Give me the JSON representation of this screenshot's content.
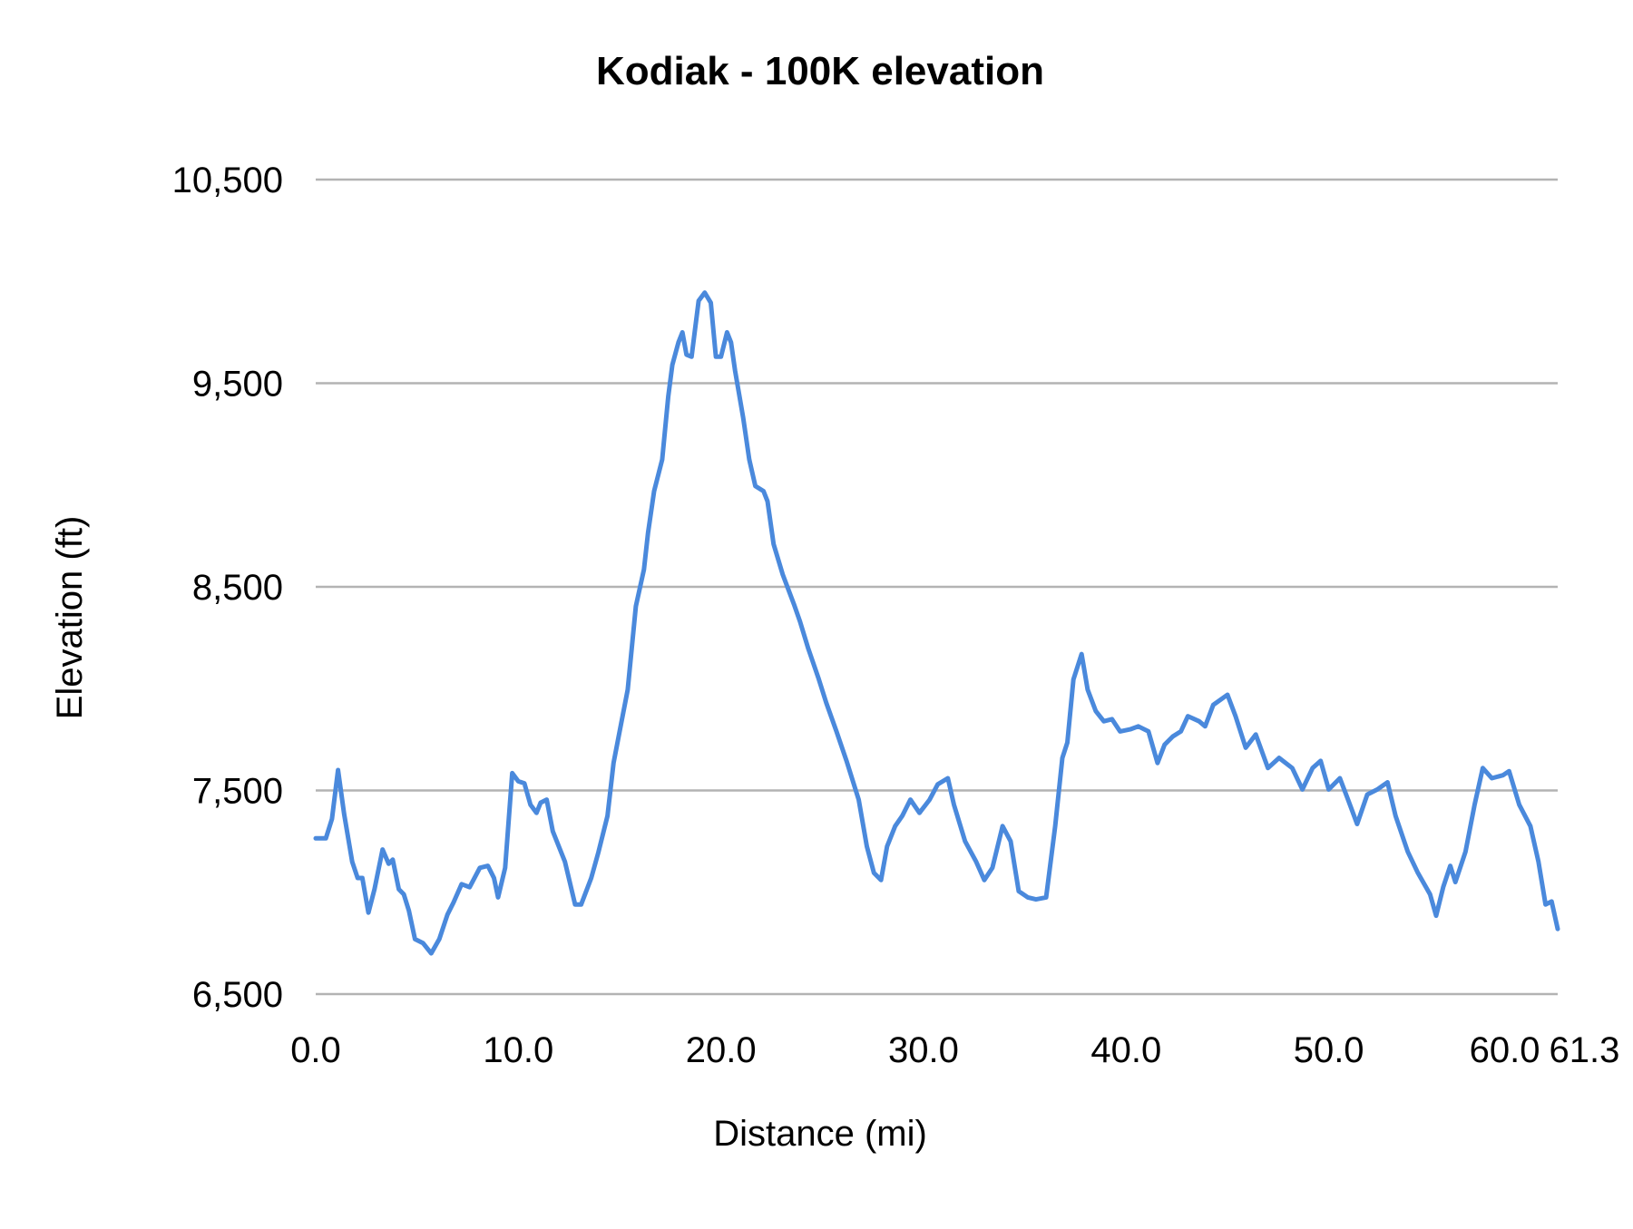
{
  "chart_data": {
    "type": "line",
    "title": "Kodiak - 100K elevation",
    "xlabel": "Distance (mi)",
    "ylabel": "Elevation (ft)",
    "xlim": [
      0,
      61.3
    ],
    "ylim": [
      6500,
      10500
    ],
    "x_ticks": [
      "0.0",
      "10.0",
      "20.0",
      "30.0",
      "40.0",
      "50.0",
      "60.0",
      "61.3"
    ],
    "x_tick_values": [
      0,
      10,
      20,
      30,
      40,
      50,
      60,
      61.3
    ],
    "y_ticks": [
      "6,500",
      "7,500",
      "8,500",
      "9,500",
      "10,500"
    ],
    "y_tick_values": [
      6500,
      7500,
      8500,
      9500,
      10500
    ],
    "grid": "horizontal",
    "legend": "none",
    "line_color": "#4a89dc",
    "grid_color": "#b3b3b3",
    "x": [
      0,
      0.5,
      0.8,
      1.1,
      1.4,
      1.8,
      2.07,
      2.3,
      2.6,
      2.9,
      3.3,
      3.6,
      3.8,
      4.1,
      4.35,
      4.6,
      4.9,
      5.3,
      5.7,
      6.1,
      6.5,
      6.8,
      7.2,
      7.6,
      8.1,
      8.5,
      8.8,
      9.0,
      9.35,
      9.7,
      10.0,
      10.3,
      10.6,
      10.9,
      11.1,
      11.4,
      11.7,
      12.3,
      12.8,
      13.1,
      13.6,
      13.95,
      14.4,
      14.7,
      15.0,
      15.4,
      15.8,
      16.2,
      16.4,
      16.7,
      17.1,
      17.4,
      17.6,
      17.9,
      18.1,
      18.3,
      18.55,
      18.9,
      19.2,
      19.5,
      19.75,
      20.0,
      20.3,
      20.5,
      20.7,
      21.1,
      21.4,
      21.7,
      22.1,
      22.3,
      22.6,
      23.05,
      23.6,
      23.9,
      24.3,
      24.8,
      25.2,
      25.7,
      26.2,
      26.8,
      27.2,
      27.55,
      27.9,
      28.2,
      28.6,
      28.95,
      29.35,
      29.8,
      30.3,
      30.7,
      31.2,
      31.5,
      32.05,
      32.6,
      33.0,
      33.4,
      33.9,
      34.3,
      34.7,
      35.15,
      35.55,
      36.05,
      36.5,
      36.85,
      37.1,
      37.4,
      37.8,
      38.1,
      38.5,
      38.9,
      39.3,
      39.7,
      40.2,
      40.6,
      41.1,
      41.55,
      41.9,
      42.3,
      42.7,
      43.05,
      43.6,
      43.9,
      44.3,
      45.0,
      45.4,
      45.9,
      46.4,
      47.0,
      47.55,
      48.2,
      48.7,
      49.2,
      49.6,
      50.0,
      50.55,
      50.95,
      51.4,
      51.9,
      52.4,
      52.9,
      53.3,
      53.9,
      54.4,
      55.0,
      55.3,
      55.65,
      56.0,
      56.25,
      56.75,
      57.2,
      57.6,
      58.05,
      58.6,
      58.9,
      59.4,
      59.95,
      60.35,
      60.7,
      61.0,
      61.3
    ],
    "y": [
      7265,
      7265,
      7360,
      7600,
      7385,
      7150,
      7070,
      7070,
      6900,
      7015,
      7210,
      7140,
      7160,
      7015,
      6990,
      6910,
      6770,
      6750,
      6700,
      6770,
      6890,
      6950,
      7040,
      7025,
      7120,
      7130,
      7070,
      6975,
      7120,
      7585,
      7545,
      7535,
      7430,
      7390,
      7440,
      7455,
      7300,
      7150,
      6940,
      6940,
      7070,
      7195,
      7375,
      7635,
      7790,
      7995,
      8405,
      8585,
      8765,
      8970,
      9125,
      9435,
      9590,
      9700,
      9750,
      9640,
      9630,
      9905,
      9945,
      9895,
      9630,
      9630,
      9750,
      9700,
      9560,
      9330,
      9125,
      8995,
      8970,
      8920,
      8710,
      8560,
      8415,
      8330,
      8200,
      8055,
      7930,
      7790,
      7645,
      7455,
      7225,
      7095,
      7060,
      7225,
      7325,
      7375,
      7455,
      7390,
      7455,
      7530,
      7560,
      7430,
      7250,
      7150,
      7060,
      7120,
      7325,
      7250,
      7005,
      6975,
      6965,
      6975,
      7325,
      7660,
      7735,
      8045,
      8170,
      7995,
      7890,
      7840,
      7850,
      7790,
      7800,
      7815,
      7790,
      7635,
      7725,
      7765,
      7790,
      7865,
      7840,
      7815,
      7920,
      7970,
      7865,
      7710,
      7775,
      7610,
      7660,
      7610,
      7505,
      7610,
      7645,
      7505,
      7560,
      7455,
      7335,
      7480,
      7505,
      7540,
      7375,
      7200,
      7095,
      6990,
      6885,
      7025,
      7130,
      7050,
      7200,
      7430,
      7610,
      7560,
      7575,
      7595,
      7430,
      7325,
      7150,
      6940,
      6955,
      6820
    ]
  }
}
